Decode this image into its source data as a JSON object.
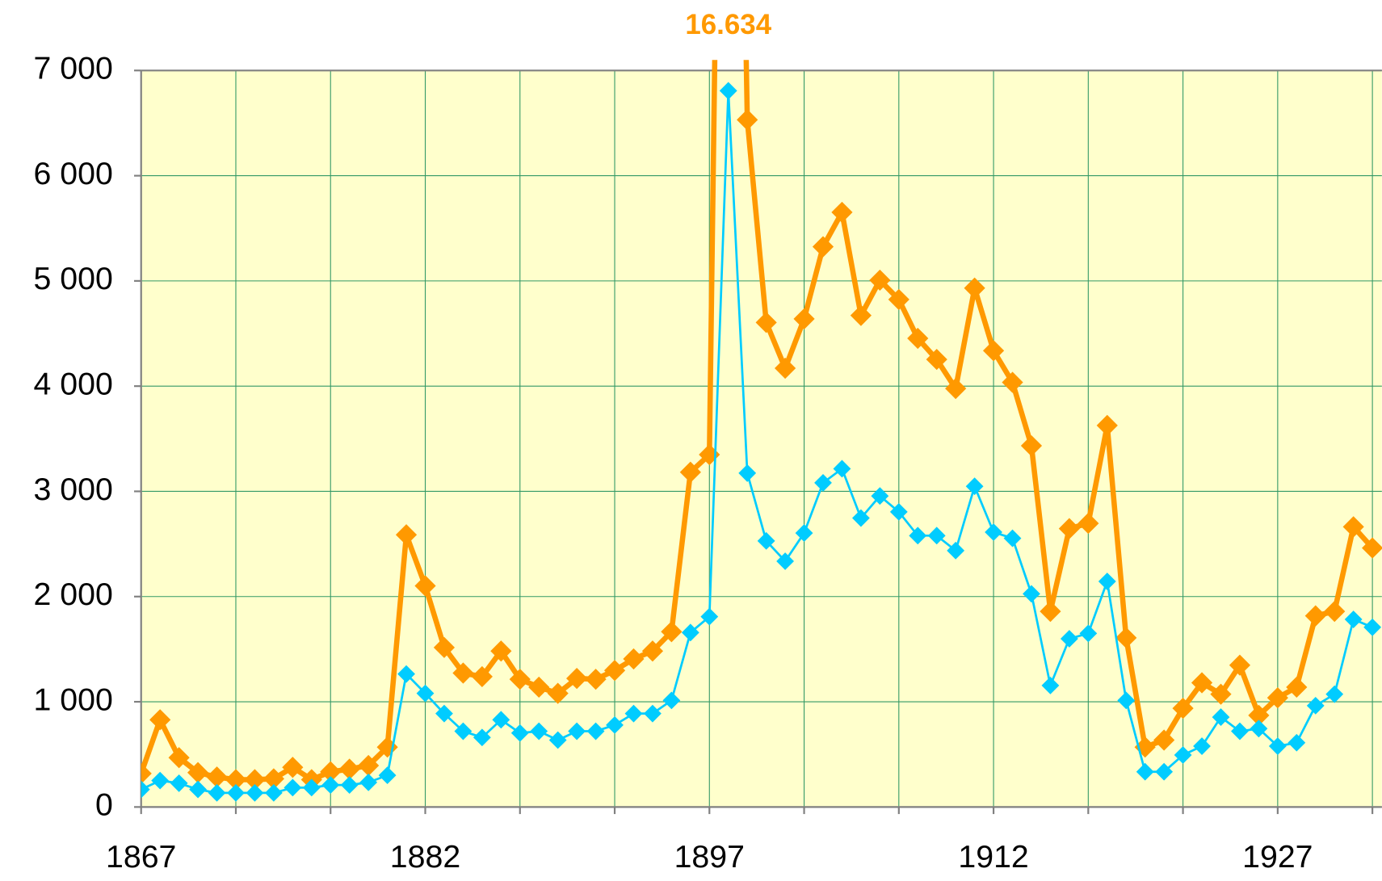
{
  "chart_data": {
    "type": "line",
    "x": [
      1867,
      1868,
      1869,
      1870,
      1871,
      1872,
      1873,
      1874,
      1875,
      1876,
      1877,
      1878,
      1879,
      1880,
      1881,
      1882,
      1883,
      1884,
      1885,
      1886,
      1887,
      1888,
      1889,
      1890,
      1891,
      1892,
      1893,
      1894,
      1895,
      1896,
      1897,
      1898,
      1899,
      1900,
      1901,
      1902,
      1903,
      1904,
      1905,
      1906,
      1907,
      1908,
      1909,
      1910,
      1911,
      1912,
      1913,
      1914,
      1915,
      1916,
      1917,
      1918,
      1919,
      1920,
      1921,
      1922,
      1923,
      1924,
      1925,
      1926,
      1927,
      1928,
      1929,
      1930,
      1931,
      1932
    ],
    "series": [
      {
        "color": "#ff9900",
        "values": [
          318,
          829,
          469,
          327,
          285,
          260,
          260,
          268,
          377,
          260,
          335,
          360,
          394,
          569,
          2587,
          2102,
          1516,
          1273,
          1239,
          1482,
          1214,
          1139,
          1080,
          1222,
          1214,
          1298,
          1407,
          1482,
          1666,
          3182,
          3349,
          16634,
          6531,
          4605,
          4170,
          4639,
          5325,
          5652,
          4672,
          5007,
          4823,
          4454,
          4254,
          3977,
          4932,
          4337,
          4036,
          3433,
          1859,
          2646,
          2696,
          3626,
          1608,
          569,
          636,
          938,
          1181,
          1072,
          1348,
          871,
          1038,
          1139,
          1817,
          1859,
          2663,
          2462
        ],
        "value_labels": [
          null,
          null,
          null,
          null,
          null,
          null,
          null,
          null,
          null,
          null,
          null,
          null,
          null,
          null,
          null,
          null,
          null,
          null,
          null,
          null,
          null,
          null,
          null,
          null,
          null,
          null,
          null,
          null,
          null,
          null,
          null,
          "16.634",
          null,
          null,
          null,
          null,
          null,
          null,
          null,
          null,
          null,
          null,
          null,
          null,
          null,
          null,
          null,
          null,
          null,
          null,
          null,
          null,
          null,
          null,
          null,
          null,
          null,
          null,
          null,
          null,
          null,
          null,
          null,
          null,
          null,
          null
        ]
      },
      {
        "color": "#00ccff",
        "values": [
          167,
          251,
          226,
          167,
          134,
          134,
          134,
          134,
          184,
          184,
          209,
          209,
          234,
          301,
          1264,
          1080,
          888,
          720,
          661,
          829,
          703,
          720,
          636,
          720,
          720,
          779,
          888,
          888,
          1013,
          1658,
          1809,
          6807,
          3173,
          2529,
          2336,
          2604,
          3081,
          3215,
          2746,
          2956,
          2805,
          2579,
          2579,
          2437,
          3048,
          2612,
          2554,
          2026,
          1155,
          1599,
          1650,
          2144,
          1013,
          335,
          335,
          494,
          578,
          854,
          720,
          745,
          578,
          611,
          963,
          1072,
          1783,
          1708
        ]
      }
    ],
    "xlim": [
      1867,
      1932.5
    ],
    "xticks": [
      1867,
      1882,
      1897,
      1912,
      1927
    ],
    "xminor": [
      1872,
      1877,
      1887,
      1892,
      1902,
      1907,
      1917,
      1922,
      1932
    ],
    "ylim": [
      0,
      7000
    ],
    "yticks": [
      0,
      {
        "value": 1000,
        "label": "1 000"
      },
      {
        "value": 2000,
        "label": "2 000"
      },
      {
        "value": 3000,
        "label": "3 000"
      },
      {
        "value": 4000,
        "label": "4 000"
      },
      {
        "value": 5000,
        "label": "5 000"
      },
      {
        "value": 6000,
        "label": "6 000"
      },
      {
        "value": 7000,
        "label": "7 000"
      }
    ],
    "grid": true,
    "background": "#ffffcc",
    "grid_color": "#339966"
  }
}
